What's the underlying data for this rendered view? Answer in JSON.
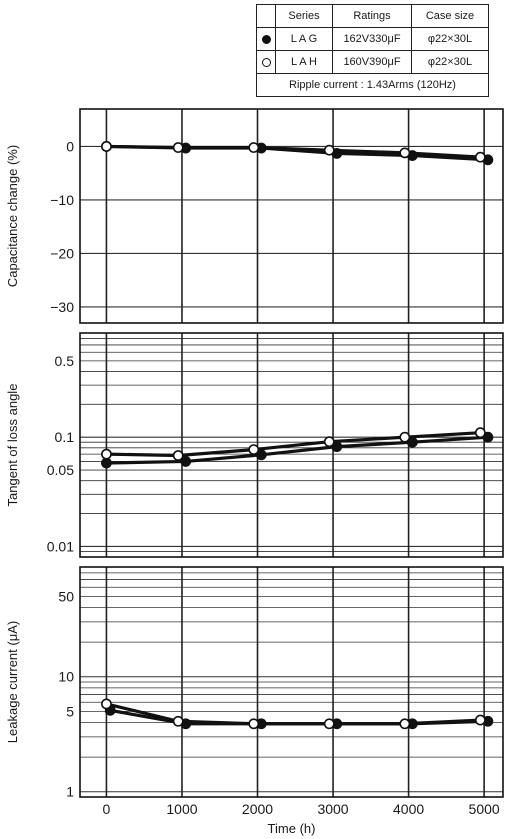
{
  "legend": {
    "headers": [
      "Series",
      "Ratings",
      "Case size"
    ],
    "rows": [
      {
        "marker": "filled",
        "series": "L A G",
        "rating": "162V330μF",
        "case": "φ22×30L"
      },
      {
        "marker": "open",
        "series": "L A H",
        "rating": "160V390μF",
        "case": "φ22×30L"
      }
    ],
    "note": "Ripple current : 1.43Arms (120Hz)"
  },
  "chart_data": [
    {
      "type": "line",
      "ylabel": "Capacitance change (%)",
      "xlabel": "",
      "ylim": [
        -33,
        7
      ],
      "yscale": "linear",
      "yticks": [
        0,
        -10,
        -20,
        -30
      ],
      "ytick_labels": [
        "0",
        "−10",
        "−20",
        "−30"
      ],
      "x": [
        0,
        1000,
        2000,
        3000,
        4000,
        5000
      ],
      "xlim": [
        -350,
        5250
      ],
      "grid": true,
      "series": [
        {
          "name": "L A G",
          "marker": "filled",
          "x": [
            0,
            1050,
            2050,
            3050,
            4050,
            5050
          ],
          "values": [
            0,
            -0.3,
            -0.3,
            -1.3,
            -1.7,
            -2.5
          ]
        },
        {
          "name": "L A H",
          "marker": "open",
          "x": [
            0,
            950,
            1950,
            2950,
            3950,
            4950
          ],
          "values": [
            0,
            -0.2,
            -0.2,
            -0.7,
            -1.2,
            -2.0
          ]
        }
      ]
    },
    {
      "type": "line",
      "ylabel": "Tangent of loss angle",
      "xlabel": "",
      "ylim": [
        0.008,
        0.9
      ],
      "yscale": "log",
      "yticks": [
        0.5,
        0.1,
        0.05,
        0.01
      ],
      "ytick_labels": [
        "0.5",
        "0.1",
        "0.05",
        "0.01"
      ],
      "x": [
        0,
        1000,
        2000,
        3000,
        4000,
        5000
      ],
      "xlim": [
        -350,
        5250
      ],
      "grid": true,
      "series": [
        {
          "name": "L A G",
          "marker": "filled",
          "x": [
            0,
            1050,
            2050,
            3050,
            4050,
            5050
          ],
          "values": [
            0.058,
            0.06,
            0.069,
            0.082,
            0.09,
            0.1
          ]
        },
        {
          "name": "L A H",
          "marker": "open",
          "x": [
            0,
            950,
            1950,
            2950,
            3950,
            4950
          ],
          "values": [
            0.07,
            0.068,
            0.077,
            0.091,
            0.1,
            0.11
          ]
        }
      ]
    },
    {
      "type": "line",
      "ylabel": "Leakage current (μA)",
      "xlabel": "Time (h)",
      "ylim": [
        0.9,
        90
      ],
      "yscale": "log",
      "yticks": [
        50,
        10,
        5,
        1
      ],
      "ytick_labels": [
        "50",
        "10",
        "5",
        "1"
      ],
      "x": [
        0,
        1000,
        2000,
        3000,
        4000,
        5000
      ],
      "xtick_labels": [
        "0",
        "1000",
        "2000",
        "3000",
        "4000",
        "5000"
      ],
      "xlim": [
        -350,
        5250
      ],
      "grid": true,
      "series": [
        {
          "name": "L A G",
          "marker": "filled",
          "x": [
            50,
            1050,
            2050,
            3050,
            4050,
            5050
          ],
          "values": [
            5.1,
            3.9,
            3.9,
            3.9,
            3.9,
            4.1
          ]
        },
        {
          "name": "L A H",
          "marker": "open",
          "x": [
            0,
            950,
            1950,
            2950,
            3950,
            4950
          ],
          "values": [
            5.8,
            4.1,
            3.9,
            3.9,
            3.9,
            4.2
          ]
        }
      ]
    }
  ]
}
